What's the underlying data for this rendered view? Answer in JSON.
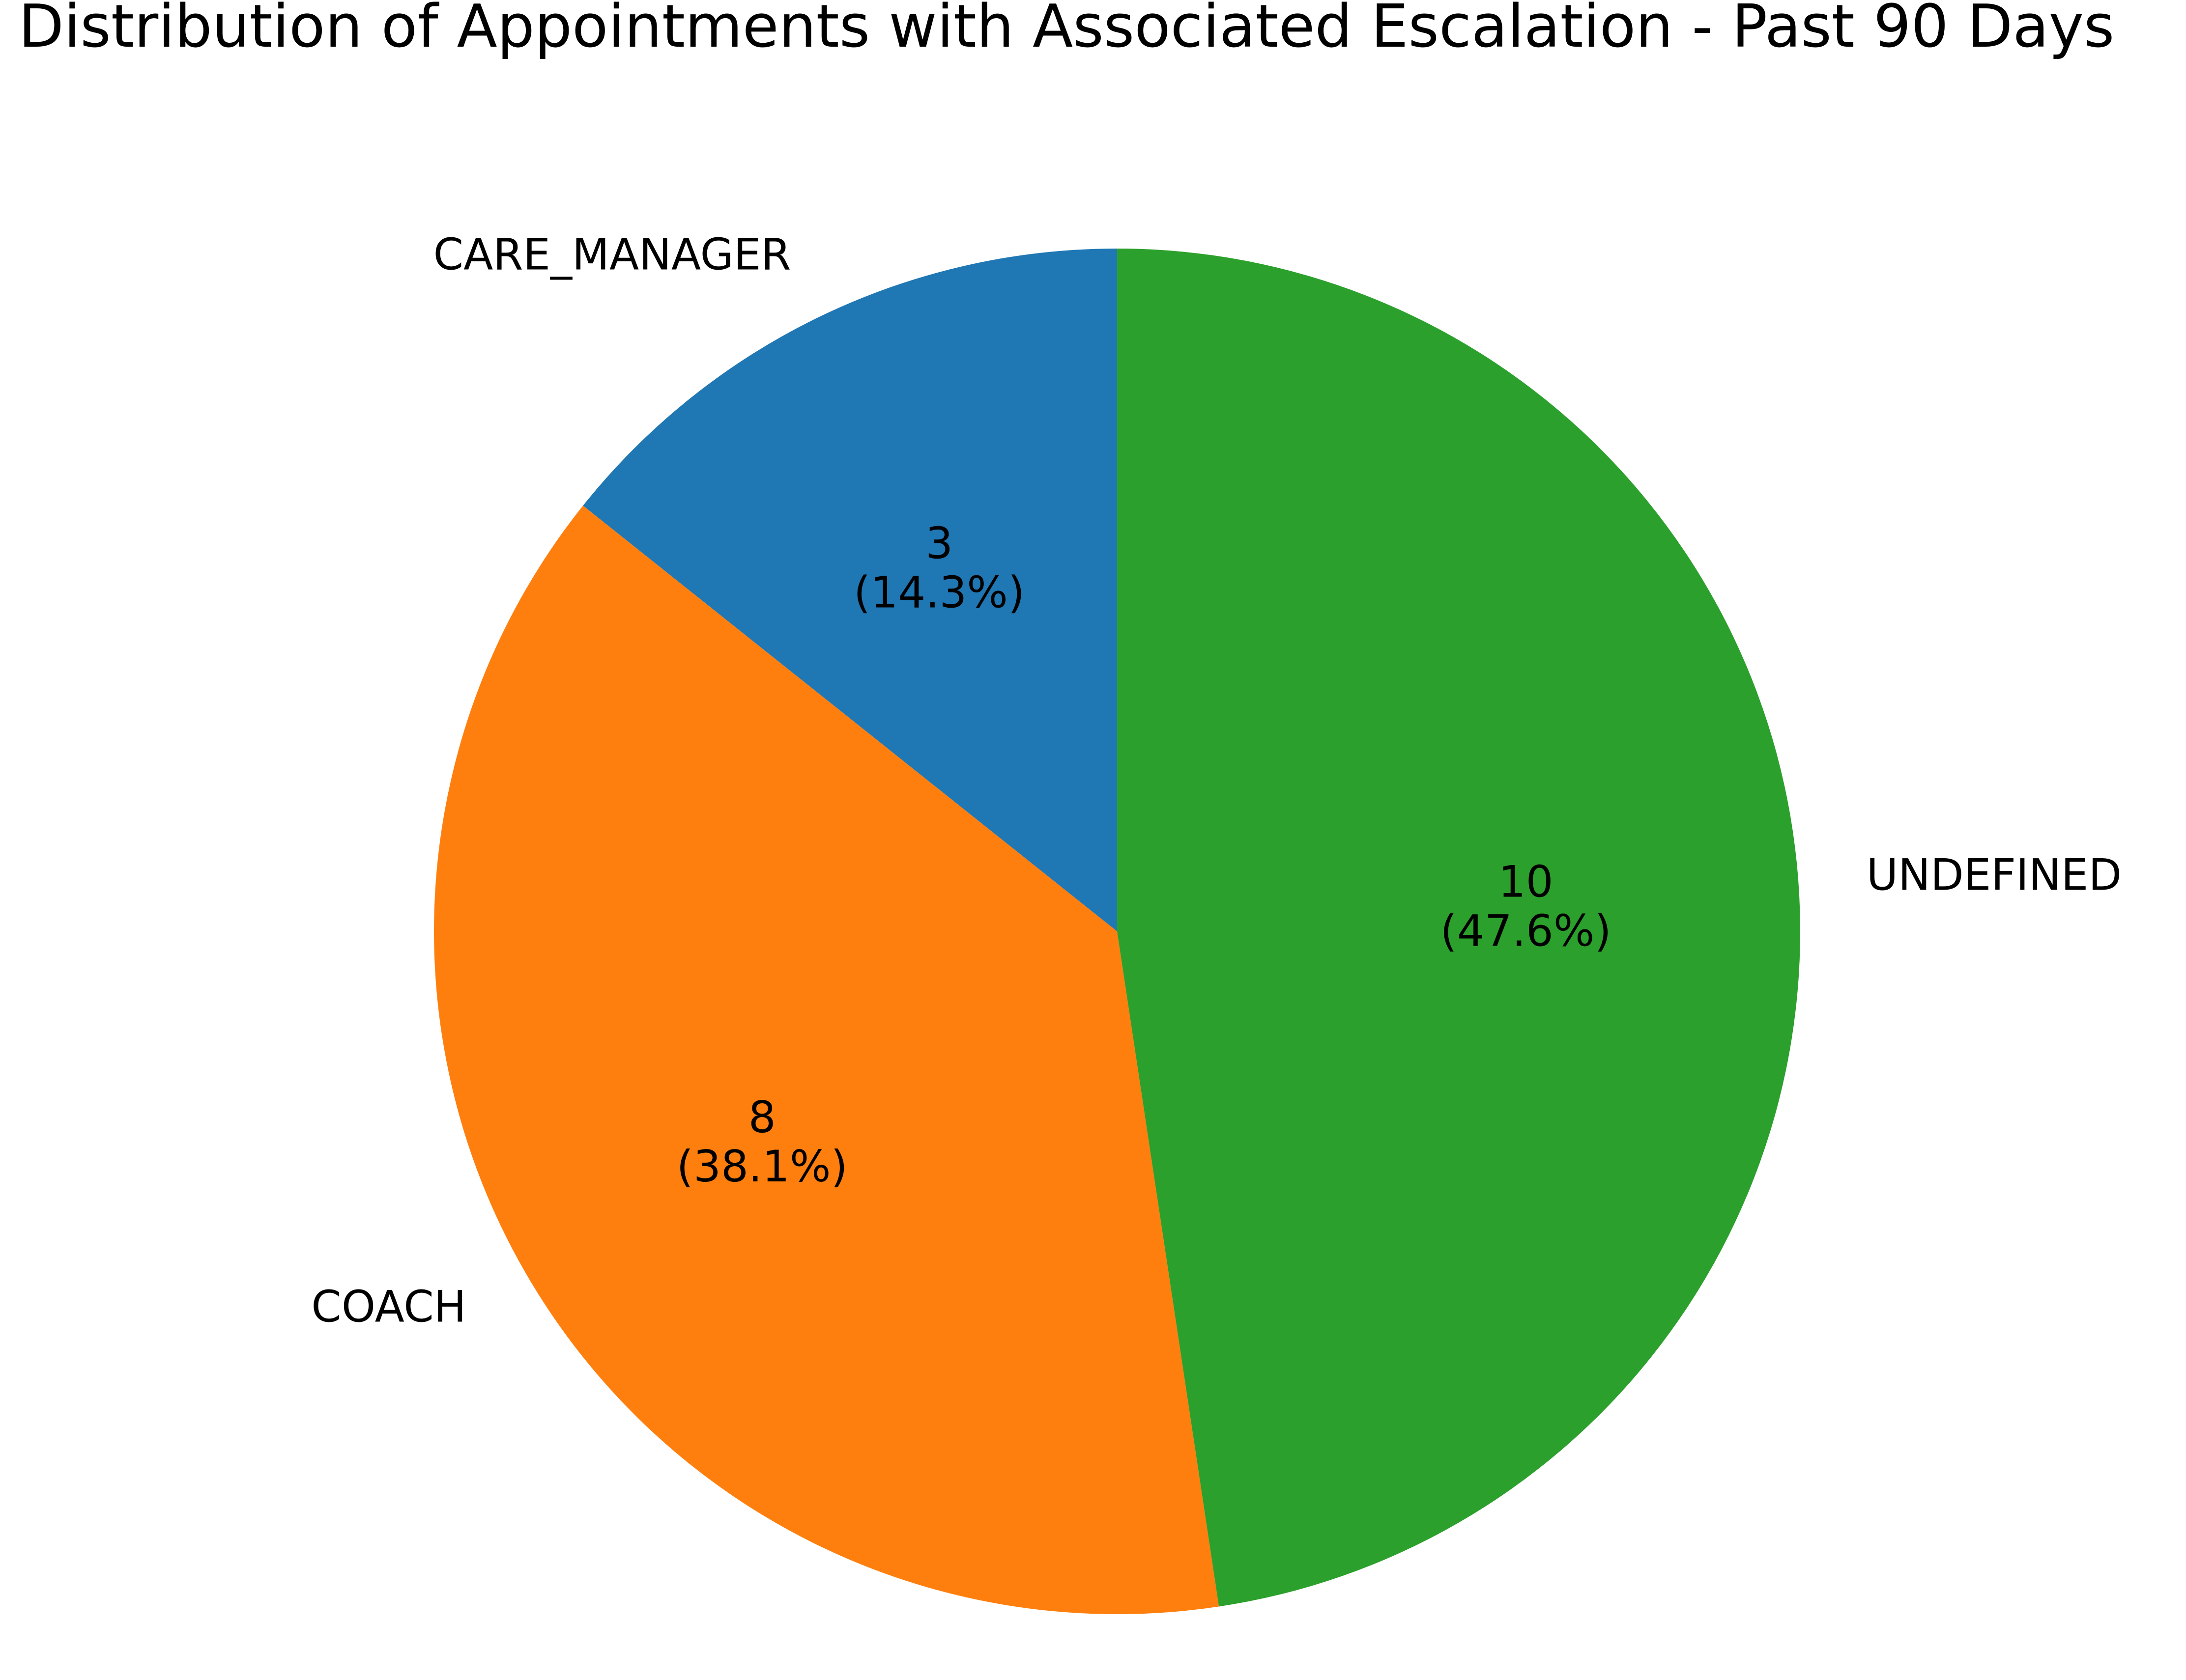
{
  "chart_data": {
    "type": "pie",
    "title": "Distribution of Appointments with Associated Escalation - Past 90 Days",
    "start_angle_deg": 90,
    "direction": "counterclockwise",
    "slices": [
      {
        "label": "CARE_MANAGER",
        "value": 3,
        "value_text": "3",
        "pct_text": "(14.3%)",
        "color": "#1f77b4"
      },
      {
        "label": "COACH",
        "value": 8,
        "value_text": "8",
        "pct_text": "(38.1%)",
        "color": "#ff7f0e"
      },
      {
        "label": "UNDEFINED",
        "value": 10,
        "value_text": "10",
        "pct_text": "(47.6%)",
        "color": "#2ca02c"
      }
    ]
  }
}
